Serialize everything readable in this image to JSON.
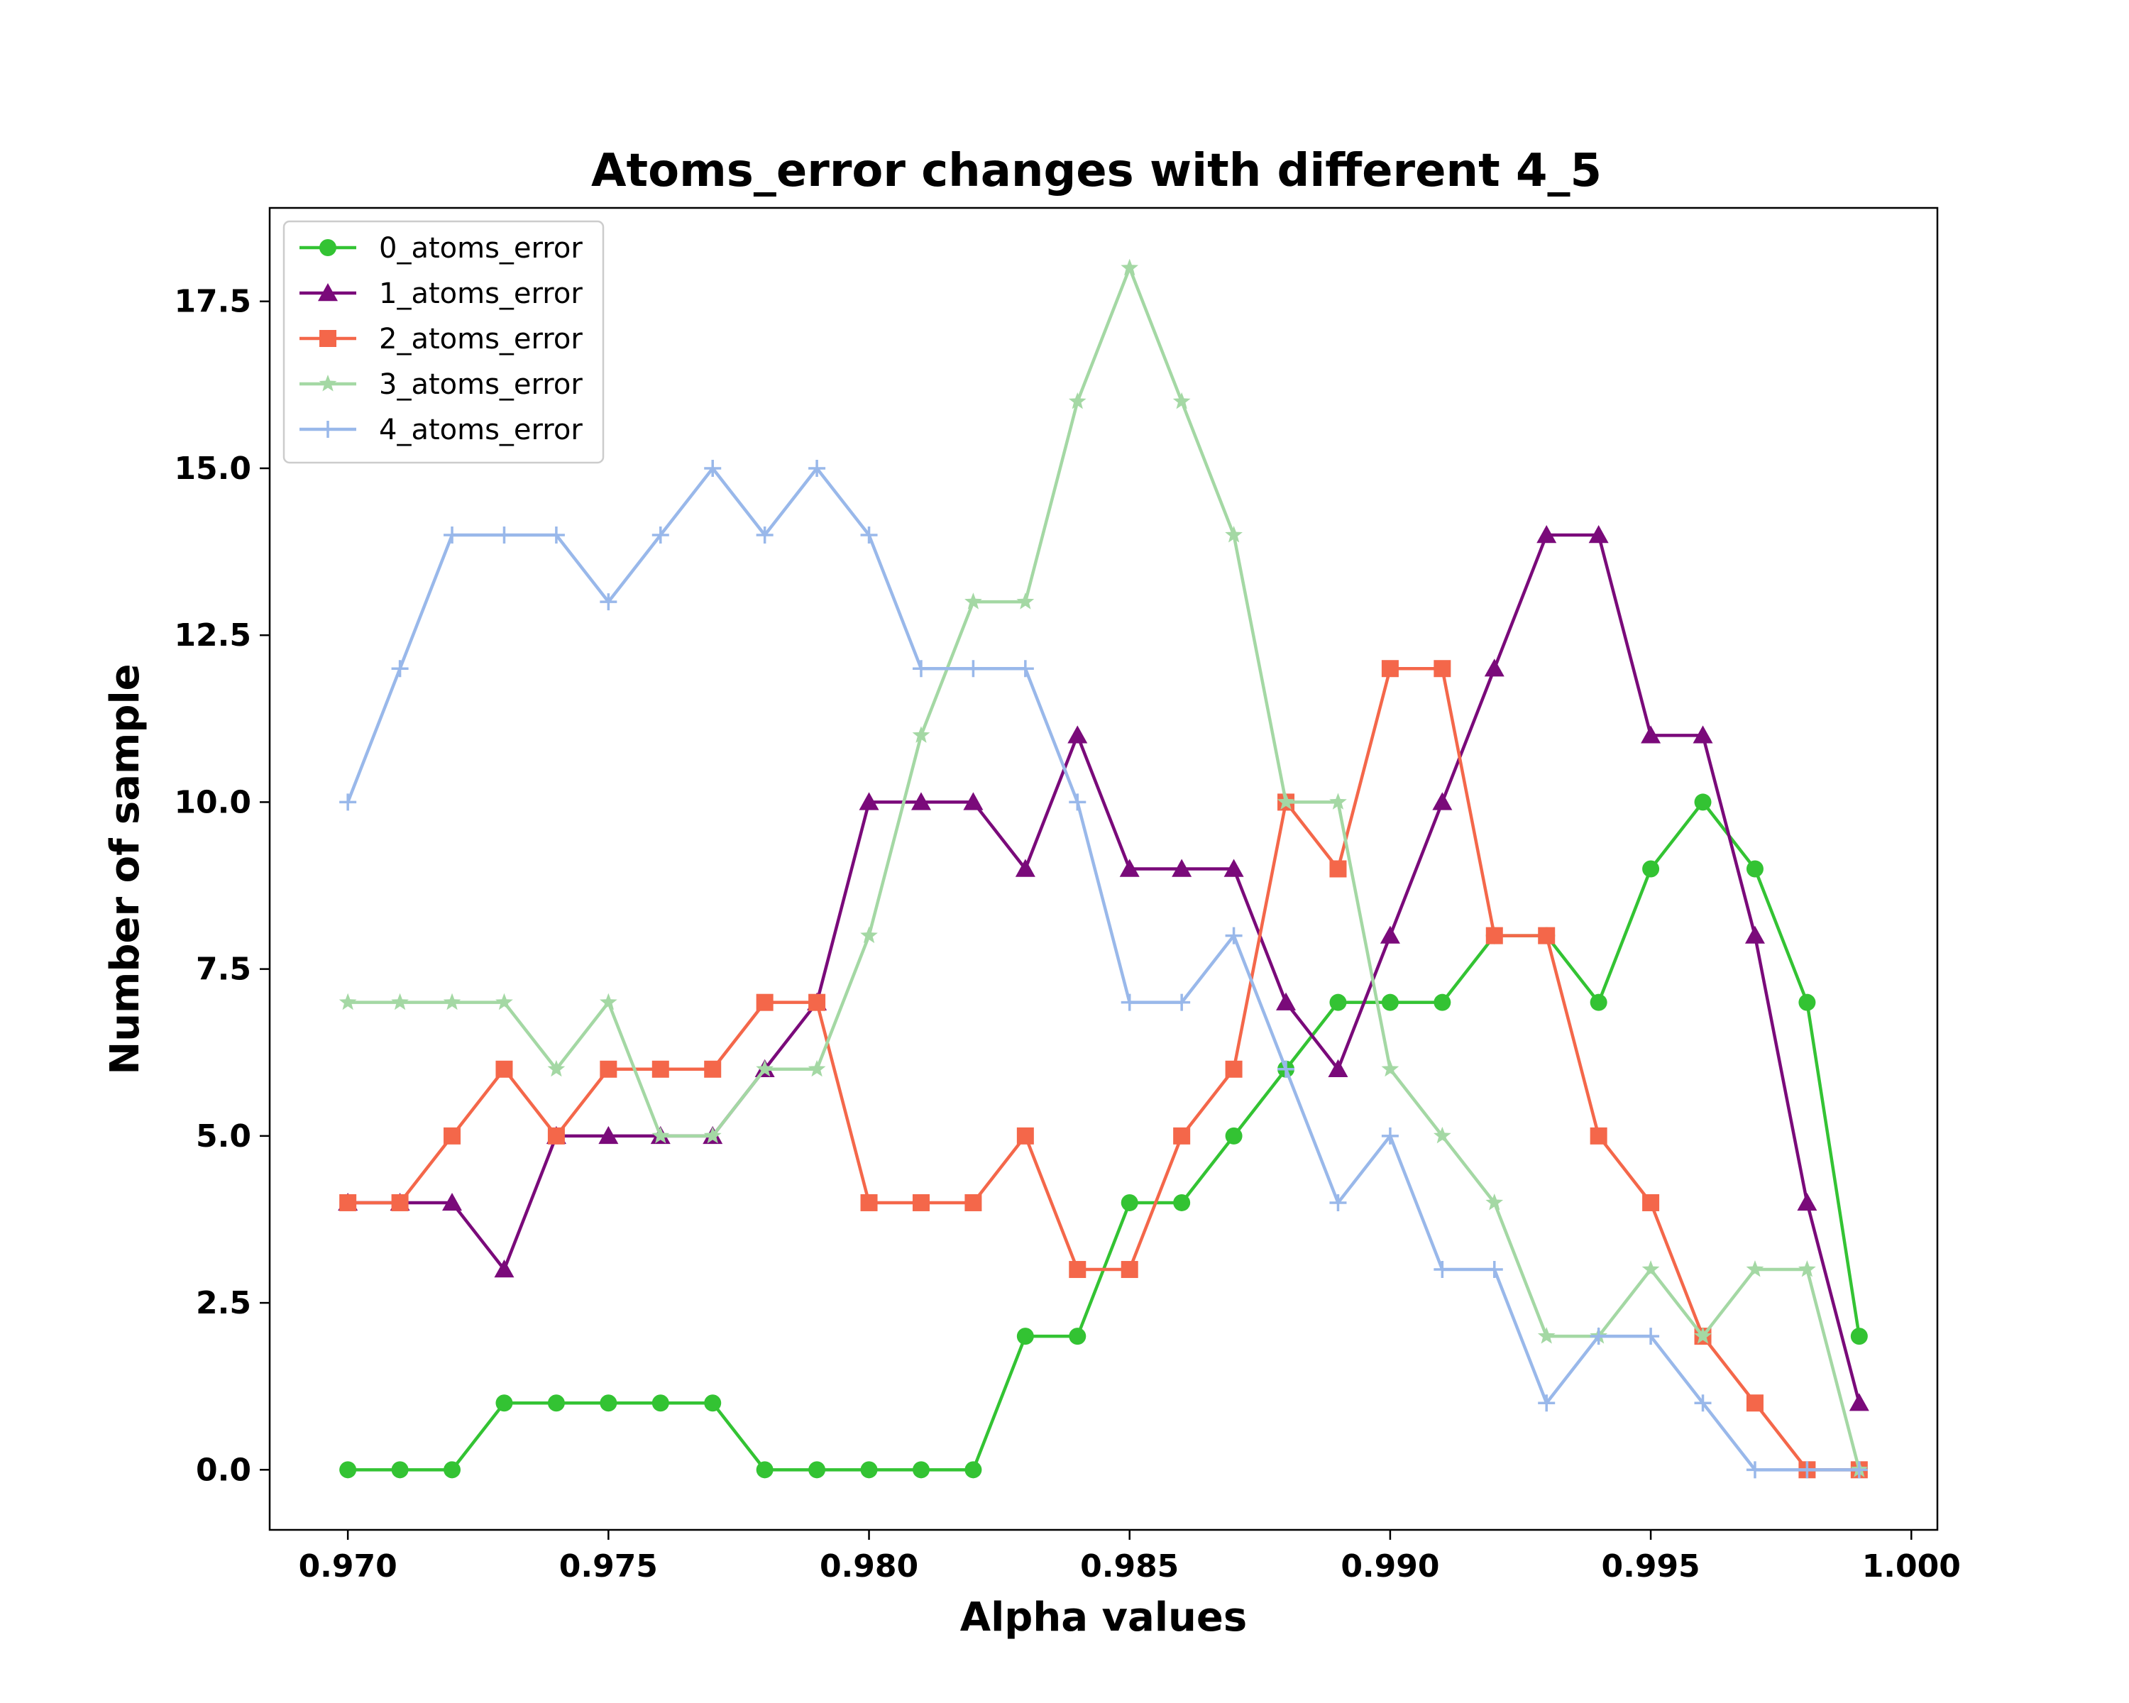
{
  "chart_data": {
    "type": "line",
    "title": "Atoms_error changes with different 4_5",
    "xlabel": "Alpha values",
    "ylabel": "Number of sample",
    "xlim": [
      0.9685,
      1.0005
    ],
    "ylim": [
      -0.9,
      18.9
    ],
    "x_ticks": [
      "0.970",
      "0.975",
      "0.980",
      "0.985",
      "0.990",
      "0.995",
      "1.000"
    ],
    "y_ticks": [
      "0.0",
      "2.5",
      "5.0",
      "7.5",
      "10.0",
      "12.5",
      "15.0",
      "17.5"
    ],
    "grid": false,
    "legend_position": "top-left",
    "x": [
      0.97,
      0.971,
      0.972,
      0.973,
      0.974,
      0.975,
      0.976,
      0.977,
      0.978,
      0.979,
      0.98,
      0.981,
      0.982,
      0.983,
      0.984,
      0.985,
      0.986,
      0.987,
      0.988,
      0.989,
      0.99,
      0.991,
      0.992,
      0.993,
      0.994,
      0.995,
      0.996,
      0.997,
      0.998,
      0.999
    ],
    "series": [
      {
        "name": "0_atoms_error",
        "color": "#33c333",
        "marker": "circle",
        "values": [
          0,
          0,
          0,
          1,
          1,
          1,
          1,
          1,
          0,
          0,
          0,
          0,
          0,
          2,
          2,
          4,
          4,
          5,
          6,
          7,
          7,
          7,
          8,
          8,
          7,
          9,
          10,
          9,
          7,
          2
        ]
      },
      {
        "name": "1_atoms_error",
        "color": "#7a0a7a",
        "marker": "triangle",
        "values": [
          4,
          4,
          4,
          3,
          5,
          5,
          5,
          5,
          6,
          7,
          10,
          10,
          10,
          9,
          11,
          9,
          9,
          9,
          7,
          6,
          8,
          10,
          12,
          14,
          14,
          11,
          11,
          8,
          4,
          1
        ]
      },
      {
        "name": "2_atoms_error",
        "color": "#f4674a",
        "marker": "square",
        "values": [
          4,
          4,
          5,
          6,
          5,
          6,
          6,
          6,
          7,
          7,
          4,
          4,
          4,
          5,
          3,
          3,
          5,
          6,
          10,
          9,
          12,
          12,
          8,
          8,
          5,
          4,
          2,
          1,
          0,
          0
        ]
      },
      {
        "name": "3_atoms_error",
        "color": "#a4d8a4",
        "marker": "star",
        "values": [
          7,
          7,
          7,
          7,
          6,
          7,
          5,
          5,
          6,
          6,
          8,
          11,
          13,
          13,
          16,
          18,
          16,
          14,
          10,
          10,
          6,
          5,
          4,
          2,
          2,
          3,
          2,
          3,
          3,
          0
        ]
      },
      {
        "name": "4_atoms_error",
        "color": "#99b8ea",
        "marker": "plus",
        "values": [
          10,
          12,
          14,
          14,
          14,
          13,
          14,
          15,
          14,
          15,
          14,
          12,
          12,
          12,
          10,
          7,
          7,
          8,
          6,
          4,
          5,
          3,
          3,
          1,
          2,
          2,
          1,
          0,
          0,
          0
        ]
      }
    ]
  }
}
